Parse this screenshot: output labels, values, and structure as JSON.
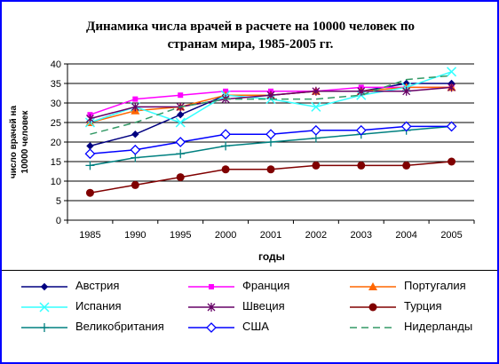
{
  "chart_data": {
    "type": "line",
    "title_line1": "Динамика числа врачей в расчете на 10000 человек по",
    "title_line2": "странам мира, 1985-2005 гг.",
    "xlabel": "годы",
    "ylabel_line1": "число врачей на",
    "ylabel_line2": "10000 человек",
    "categories": [
      "1985",
      "1990",
      "1995",
      "2000",
      "2001",
      "2002",
      "2003",
      "2004",
      "2005"
    ],
    "ylim": [
      0,
      40
    ],
    "yticks": [
      "0",
      "5",
      "10",
      "15",
      "20",
      "25",
      "30",
      "35",
      "40"
    ],
    "grid": "horizontal",
    "series": [
      {
        "name": "Австрия",
        "color": "#000080",
        "marker": "diamond-small",
        "dash": "",
        "values": [
          19,
          22,
          27,
          32,
          32,
          33,
          33,
          35,
          35
        ]
      },
      {
        "name": "Франция",
        "color": "#ff00ff",
        "marker": "square",
        "dash": "",
        "values": [
          27,
          31,
          32,
          33,
          33,
          33,
          34,
          34,
          34
        ]
      },
      {
        "name": "Португалия",
        "color": "#ff6600",
        "marker": "triangle",
        "dash": "",
        "values": [
          25,
          28,
          29,
          32,
          32,
          33,
          33,
          34,
          34
        ]
      },
      {
        "name": "Испания",
        "color": "#33ffff",
        "marker": "x",
        "dash": "",
        "values": [
          25,
          29,
          25,
          32,
          31,
          29,
          32,
          34,
          38
        ]
      },
      {
        "name": "Швеция",
        "color": "#660066",
        "marker": "star",
        "dash": "",
        "values": [
          26,
          29,
          29,
          31,
          32,
          33,
          33,
          33,
          34
        ]
      },
      {
        "name": "Турция",
        "color": "#800000",
        "marker": "circle",
        "dash": "",
        "values": [
          7,
          9,
          11,
          13,
          13,
          14,
          14,
          14,
          15
        ]
      },
      {
        "name": "Великобритания",
        "color": "#008080",
        "marker": "plus",
        "dash": "",
        "values": [
          14,
          16,
          17,
          19,
          20,
          21,
          22,
          23,
          24
        ]
      },
      {
        "name": "США",
        "color": "#0000ff",
        "marker": "diamond-open",
        "dash": "",
        "values": [
          17,
          18,
          20,
          22,
          22,
          23,
          23,
          24,
          24
        ]
      },
      {
        "name": "Нидерланды",
        "color": "#339966",
        "marker": "none",
        "dash": "8,5",
        "values": [
          22,
          25,
          29,
          31,
          31,
          31,
          32,
          36,
          37
        ]
      }
    ]
  },
  "colors": {
    "frame": "#0000ff",
    "axis": "#000000",
    "grid": "#000000"
  }
}
